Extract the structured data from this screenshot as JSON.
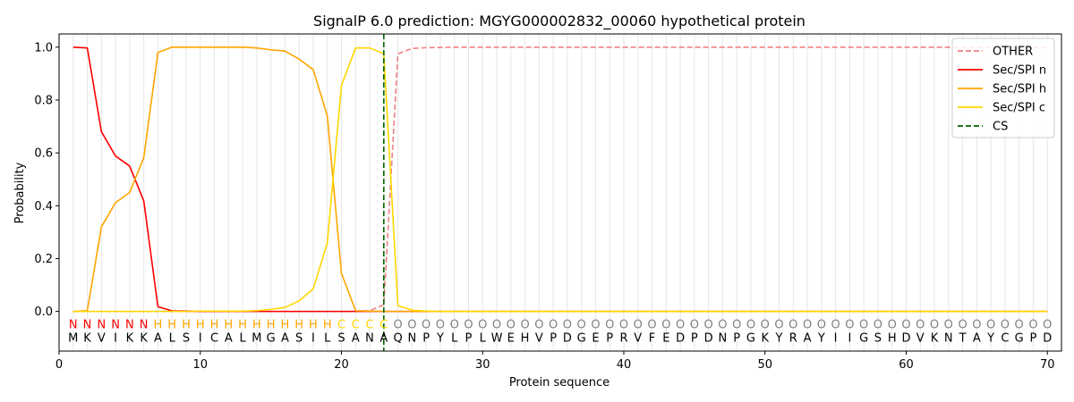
{
  "chart_data": {
    "type": "line",
    "title": "SignalP 6.0 prediction: MGYG000002832_00060 hypothetical protein",
    "xlabel": "Protein sequence",
    "ylabel": "Probability",
    "xlim": [
      0,
      71
    ],
    "ylim": [
      -0.15,
      1.05
    ],
    "x_ticks": [
      0,
      10,
      20,
      30,
      40,
      50,
      60,
      70
    ],
    "y_ticks": [
      0.0,
      0.2,
      0.4,
      0.6,
      0.8,
      1.0
    ],
    "x_tick_labels": [
      "0",
      "10",
      "20",
      "30",
      "40",
      "50",
      "60",
      "70"
    ],
    "y_tick_labels": [
      "0.0",
      "0.2",
      "0.4",
      "0.6",
      "0.8",
      "1.0"
    ],
    "grid": "vertical lines at each residue",
    "legend_position": "top-right",
    "sequence": [
      "M",
      "K",
      "V",
      "I",
      "K",
      "K",
      "A",
      "L",
      "S",
      "I",
      "C",
      "A",
      "L",
      "M",
      "G",
      "A",
      "S",
      "I",
      "L",
      "S",
      "A",
      "N",
      "A",
      "Q",
      "N",
      "P",
      "Y",
      "L",
      "P",
      "L",
      "W",
      "E",
      "H",
      "V",
      "P",
      "D",
      "G",
      "E",
      "P",
      "R",
      "V",
      "F",
      "E",
      "D",
      "P",
      "D",
      "N",
      "P",
      "G",
      "K",
      "Y",
      "R",
      "A",
      "Y",
      "I",
      "I",
      "G",
      "S",
      "H",
      "D",
      "V",
      "K",
      "N",
      "T",
      "A",
      "Y",
      "C",
      "G",
      "P",
      "D"
    ],
    "labels": [
      "N",
      "N",
      "N",
      "N",
      "N",
      "N",
      "H",
      "H",
      "H",
      "H",
      "H",
      "H",
      "H",
      "H",
      "H",
      "H",
      "H",
      "H",
      "H",
      "C",
      "C",
      "C",
      "C",
      "O",
      "O",
      "O",
      "O",
      "O",
      "O",
      "O",
      "O",
      "O",
      "O",
      "O",
      "O",
      "O",
      "O",
      "O",
      "O",
      "O",
      "O",
      "O",
      "O",
      "O",
      "O",
      "O",
      "O",
      "O",
      "O",
      "O",
      "O",
      "O",
      "O",
      "O",
      "O",
      "O",
      "O",
      "O",
      "O",
      "O",
      "O",
      "O",
      "O",
      "O",
      "O",
      "O",
      "O",
      "O",
      "O",
      "O"
    ],
    "label_colors": {
      "N": "#ff0000",
      "H": "#ffa500",
      "C": "#ffd700",
      "O": "#808080"
    },
    "cleavage_site": 23,
    "series": [
      {
        "name": "OTHER",
        "color": "#f08080",
        "dash": "dashed",
        "x": [
          1,
          2,
          3,
          4,
          5,
          6,
          7,
          8,
          9,
          10,
          11,
          12,
          13,
          14,
          15,
          16,
          17,
          18,
          19,
          20,
          21,
          22,
          23,
          24,
          25,
          26,
          27,
          28,
          29,
          30,
          31,
          32,
          33,
          34,
          35,
          36,
          37,
          38,
          39,
          40,
          41,
          42,
          43,
          44,
          45,
          46,
          47,
          48,
          49,
          50,
          51,
          52,
          53,
          54,
          55,
          56,
          57,
          58,
          59,
          60,
          61,
          62,
          63,
          64,
          65,
          66,
          67,
          68,
          69,
          70
        ],
        "values": [
          0,
          0,
          0,
          0,
          0,
          0,
          0,
          0,
          0,
          0,
          0,
          0,
          0,
          0,
          0,
          0,
          0,
          0,
          0,
          0,
          0,
          0.003,
          0.025,
          0.975,
          0.995,
          0.998,
          0.999,
          1,
          1,
          1,
          1,
          1,
          1,
          1,
          1,
          1,
          1,
          1,
          1,
          1,
          1,
          1,
          1,
          1,
          1,
          1,
          1,
          1,
          1,
          1,
          1,
          1,
          1,
          1,
          1,
          1,
          1,
          1,
          1,
          1,
          1,
          1,
          1,
          1,
          1,
          1,
          1,
          1,
          1,
          1
        ]
      },
      {
        "name": "Sec/SPI n",
        "color": "#ff0000",
        "dash": "solid",
        "x": [
          1,
          2,
          3,
          4,
          5,
          6,
          7,
          8,
          9,
          10,
          11,
          12,
          13,
          14,
          15,
          16,
          17,
          18,
          19,
          20,
          21,
          22,
          23,
          24,
          25,
          26,
          27,
          28,
          29,
          30,
          31,
          32,
          33,
          34,
          35,
          36,
          37,
          38,
          39,
          40,
          41,
          42,
          43,
          44,
          45,
          46,
          47,
          48,
          49,
          50,
          51,
          52,
          53,
          54,
          55,
          56,
          57,
          58,
          59,
          60,
          61,
          62,
          63,
          64,
          65,
          66,
          67,
          68,
          69,
          70
        ],
        "values": [
          1.0,
          0.997,
          0.68,
          0.588,
          0.55,
          0.418,
          0.018,
          0.002,
          0.001,
          0,
          0,
          0,
          0,
          0,
          0,
          0,
          0,
          0,
          0,
          0,
          0,
          0,
          0,
          0,
          0,
          0,
          0,
          0,
          0,
          0,
          0,
          0,
          0,
          0,
          0,
          0,
          0,
          0,
          0,
          0,
          0,
          0,
          0,
          0,
          0,
          0,
          0,
          0,
          0,
          0,
          0,
          0,
          0,
          0,
          0,
          0,
          0,
          0,
          0,
          0,
          0,
          0,
          0,
          0,
          0,
          0,
          0,
          0,
          0,
          0
        ]
      },
      {
        "name": "Sec/SPI h",
        "color": "#ffa500",
        "dash": "solid",
        "x": [
          1,
          2,
          3,
          4,
          5,
          6,
          7,
          8,
          9,
          10,
          11,
          12,
          13,
          14,
          15,
          16,
          17,
          18,
          19,
          20,
          21,
          22,
          23,
          24,
          25,
          26,
          27,
          28,
          29,
          30,
          31,
          32,
          33,
          34,
          35,
          36,
          37,
          38,
          39,
          40,
          41,
          42,
          43,
          44,
          45,
          46,
          47,
          48,
          49,
          50,
          51,
          52,
          53,
          54,
          55,
          56,
          57,
          58,
          59,
          60,
          61,
          62,
          63,
          64,
          65,
          66,
          67,
          68,
          69,
          70
        ],
        "values": [
          0,
          0.003,
          0.32,
          0.412,
          0.45,
          0.582,
          0.98,
          1.0,
          1.0,
          1.0,
          1.0,
          1.0,
          1.0,
          0.997,
          0.99,
          0.985,
          0.955,
          0.915,
          0.74,
          0.145,
          0.003,
          0.001,
          0,
          0,
          0,
          0,
          0,
          0,
          0,
          0,
          0,
          0,
          0,
          0,
          0,
          0,
          0,
          0,
          0,
          0,
          0,
          0,
          0,
          0,
          0,
          0,
          0,
          0,
          0,
          0,
          0,
          0,
          0,
          0,
          0,
          0,
          0,
          0,
          0,
          0,
          0,
          0,
          0,
          0,
          0,
          0,
          0,
          0,
          0,
          0
        ]
      },
      {
        "name": "Sec/SPI c",
        "color": "#ffd700",
        "dash": "solid",
        "x": [
          1,
          2,
          3,
          4,
          5,
          6,
          7,
          8,
          9,
          10,
          11,
          12,
          13,
          14,
          15,
          16,
          17,
          18,
          19,
          20,
          21,
          22,
          23,
          24,
          25,
          26,
          27,
          28,
          29,
          30,
          31,
          32,
          33,
          34,
          35,
          36,
          37,
          38,
          39,
          40,
          41,
          42,
          43,
          44,
          45,
          46,
          47,
          48,
          49,
          50,
          51,
          52,
          53,
          54,
          55,
          56,
          57,
          58,
          59,
          60,
          61,
          62,
          63,
          64,
          65,
          66,
          67,
          68,
          69,
          70
        ],
        "values": [
          0,
          0,
          0,
          0,
          0,
          0,
          0,
          0,
          0,
          0.001,
          0.001,
          0.001,
          0.001,
          0.003,
          0.008,
          0.015,
          0.04,
          0.085,
          0.26,
          0.855,
          0.997,
          0.997,
          0.975,
          0.022,
          0.005,
          0.001,
          0,
          0,
          0,
          0,
          0,
          0,
          0,
          0,
          0,
          0,
          0,
          0,
          0,
          0,
          0,
          0,
          0,
          0,
          0,
          0,
          0,
          0,
          0,
          0,
          0,
          0,
          0,
          0,
          0,
          0,
          0,
          0,
          0,
          0,
          0,
          0,
          0,
          0,
          0,
          0,
          0,
          0,
          0,
          0
        ]
      }
    ],
    "legend": [
      {
        "name": "OTHER",
        "color": "#f08080",
        "dash": "dashed"
      },
      {
        "name": "Sec/SPI n",
        "color": "#ff0000",
        "dash": "solid"
      },
      {
        "name": "Sec/SPI h",
        "color": "#ffa500",
        "dash": "solid"
      },
      {
        "name": "Sec/SPI c",
        "color": "#ffd700",
        "dash": "solid"
      },
      {
        "name": "CS",
        "color": "#006400",
        "dash": "dashed"
      }
    ]
  }
}
